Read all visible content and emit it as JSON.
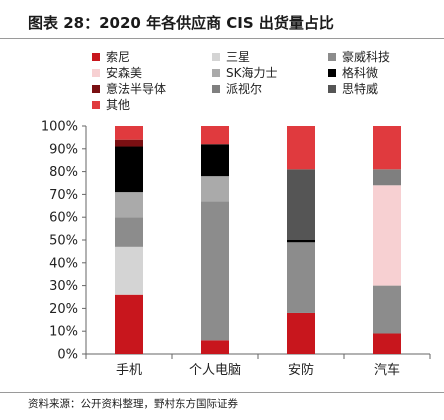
{
  "header": {
    "title": "图表 28：2020 年各供应商 CIS 出货量占比"
  },
  "footer": {
    "source": "资料来源：公开资料整理，野村东方国际证券"
  },
  "chart_data": {
    "type": "bar",
    "stacked": true,
    "title": "",
    "xlabel": "",
    "ylabel": "",
    "categories": [
      "手机",
      "个人电脑",
      "安防",
      "汽车"
    ],
    "ylim": [
      0,
      100
    ],
    "yticks": [
      "0%",
      "10%",
      "20%",
      "30%",
      "40%",
      "50%",
      "60%",
      "70%",
      "80%",
      "90%",
      "100%"
    ],
    "legend_position": "top",
    "series": [
      {
        "name": "索尼",
        "color": "#c8161d",
        "values": [
          26,
          6,
          18,
          9
        ]
      },
      {
        "name": "三星",
        "color": "#d4d4d4",
        "values": [
          21,
          0,
          0,
          0
        ]
      },
      {
        "name": "豪威科技",
        "color": "#8c8c8c",
        "values": [
          13,
          61,
          31,
          21
        ]
      },
      {
        "name": "安森美",
        "color": "#f7d0d2",
        "values": [
          0,
          0,
          0,
          44
        ]
      },
      {
        "name": "SK海力士",
        "color": "#aaaaaa",
        "values": [
          11,
          11,
          0,
          0
        ]
      },
      {
        "name": "格科微",
        "color": "#000000",
        "values": [
          20,
          14,
          1,
          0
        ]
      },
      {
        "name": "意法半导体",
        "color": "#7a0f12",
        "values": [
          3,
          0,
          0,
          0
        ]
      },
      {
        "name": "派视尔",
        "color": "#7f7f7f",
        "values": [
          0,
          0,
          0,
          7
        ]
      },
      {
        "name": "思特威",
        "color": "#555555",
        "values": [
          0,
          0,
          31,
          0
        ]
      },
      {
        "name": "其他",
        "color": "#e03a3e",
        "values": [
          6,
          8,
          19,
          19
        ]
      }
    ]
  }
}
